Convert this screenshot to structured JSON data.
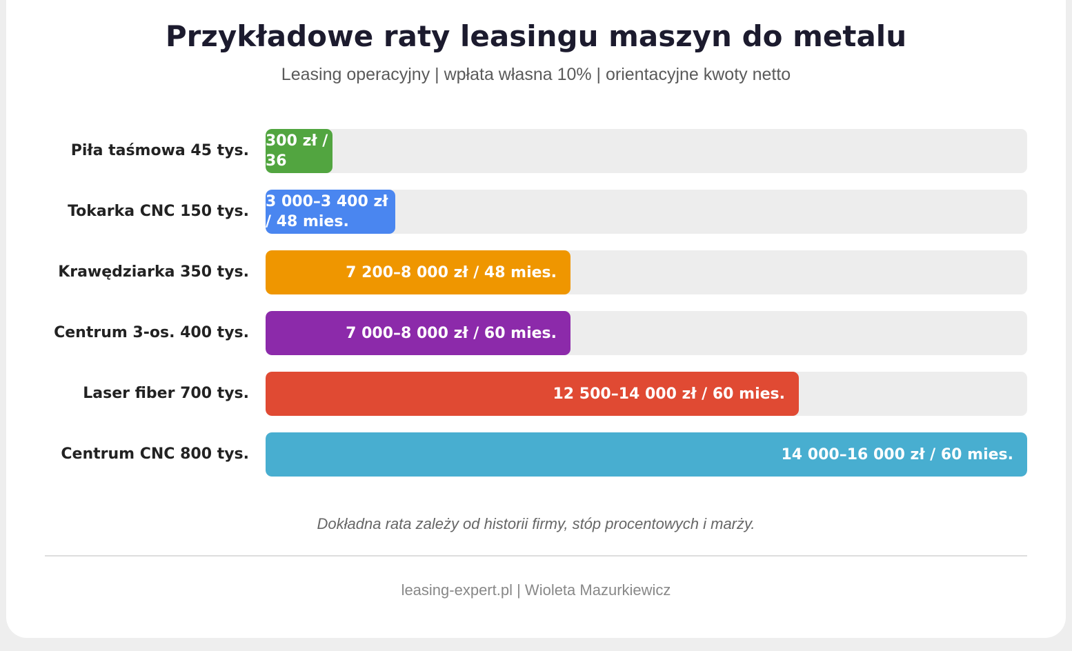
{
  "chart_data": {
    "type": "bar",
    "orientation": "horizontal",
    "title": "Przykładowe raty leasingu maszyn do metalu",
    "subtitle": "Leasing operacyjny | wpłata własna 10% | orientacyjne kwoty netto",
    "categories": [
      "Piła taśmowa 45 tys.",
      "Tokarka CNC 150 tys.",
      "Krawędziarka 350 tys.",
      "Centrum 3-os. 400 tys.",
      "Laser fiber 700 tys.",
      "Centrum CNC 800 tys."
    ],
    "values": [
      8.75,
      17,
      40,
      40,
      70,
      100
    ],
    "value_labels": [
      "300 zł / 36",
      "3 000–3 400 zł / 48 mies.",
      "7 200–8 000 zł / 48 mies.",
      "7 000–8 000 zł / 60 mies.",
      "12 500–14 000 zł / 60 mies.",
      "14 000–16 000 zł / 60 mies."
    ],
    "colors": [
      "#52a540",
      "#4a86f0",
      "#ef9600",
      "#8c2aaa",
      "#e04a33",
      "#48aed0"
    ],
    "xlim": [
      0,
      100
    ],
    "grid": false,
    "legend": "none"
  },
  "note": "Dokładna rata zależy od historii firmy, stóp procentowych i marży.",
  "footer": "leasing-expert.pl | Wioleta Mazurkiewicz"
}
